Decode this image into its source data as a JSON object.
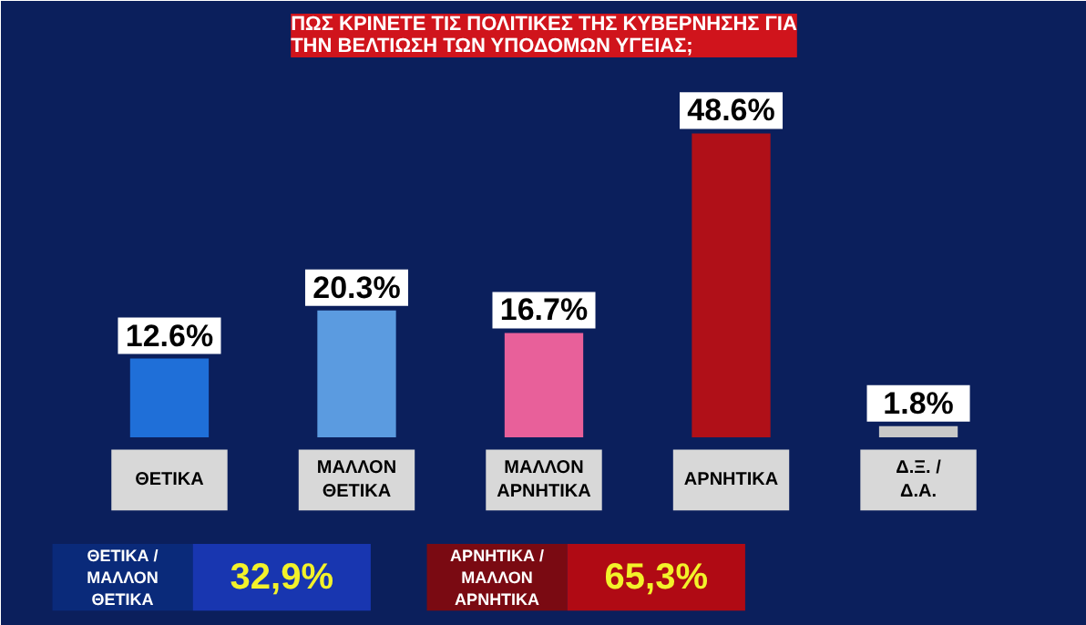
{
  "chart_data": {
    "type": "bar",
    "title": "ΠΩΣ ΚΡΙΝΕΤΕ ΤΙΣ ΠΟΛΙΤΙΚΕΣ ΤΗΣ ΚΥΒΕΡΝΗΣΗΣ ΓΙΑ ΤΗΝ ΒΕΛΤΙΩΣΗ ΤΩΝ ΥΠΟΔΟΜΩΝ ΥΓΕΙΑΣ;",
    "categories": [
      "ΘΕΤΙΚΑ",
      "ΜΑΛΛΟΝ ΘΕΤΙΚΑ",
      "ΜΑΛΛΟΝ ΑΡΝΗΤΙΚΑ",
      "ΑΡΝΗΤΙΚΑ",
      "Δ.Ξ. / Δ.Α."
    ],
    "values": [
      12.6,
      20.3,
      16.7,
      48.6,
      1.8
    ],
    "colors": [
      "#1f6fd8",
      "#5b9be0",
      "#e8609a",
      "#b01018",
      "#c8c8c8"
    ],
    "value_labels": [
      "12.6%",
      "20.3%",
      "16.7%",
      "48.6%",
      "1.8%"
    ],
    "annotations": [
      "ΘΕΤΙΚΑ / ΜΑΛΛΟΝ ΘΕΤΙΚΑ",
      "32,9%",
      "ΑΡΝΗΤΙΚΑ / ΜΑΛΛΟΝ ΑΡΝΗΤΙΚΑ",
      "65,3%"
    ],
    "grid": false
  }
}
